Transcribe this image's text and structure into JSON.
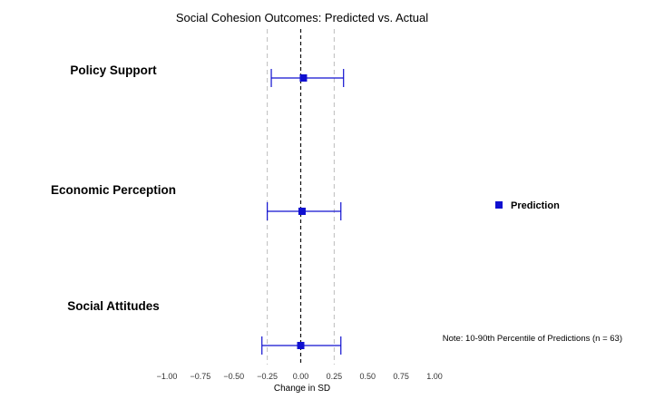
{
  "chart_data": {
    "type": "scatter",
    "title": "Social Cohesion Outcomes: Predicted vs. Actual",
    "xlabel": "Change in SD",
    "ylabel": "",
    "xlim": [
      -1.0,
      1.0
    ],
    "x_ticks": [
      "−1.00",
      "−0.75",
      "−0.50",
      "−0.25",
      "0.00",
      "0.25",
      "0.50",
      "0.75",
      "1.00"
    ],
    "reference_lines": {
      "zero": 0.0,
      "dashed_grey": [
        -0.25,
        0.25
      ]
    },
    "categories": [
      "Policy Support",
      "Economic Perception",
      "Social Attitudes"
    ],
    "series": [
      {
        "name": "Prediction",
        "color": "#1010d0",
        "points": [
          {
            "category": "Policy Support",
            "estimate": 0.02,
            "low": -0.22,
            "high": 0.32
          },
          {
            "category": "Economic Perception",
            "estimate": 0.01,
            "low": -0.25,
            "high": 0.3
          },
          {
            "category": "Social Attitudes",
            "estimate": 0.0,
            "low": -0.29,
            "high": 0.3
          }
        ]
      }
    ],
    "legend": {
      "label": "Prediction",
      "position": "right"
    },
    "note": "Note: 10-90th Percentile of Predictions (n = 63)"
  }
}
